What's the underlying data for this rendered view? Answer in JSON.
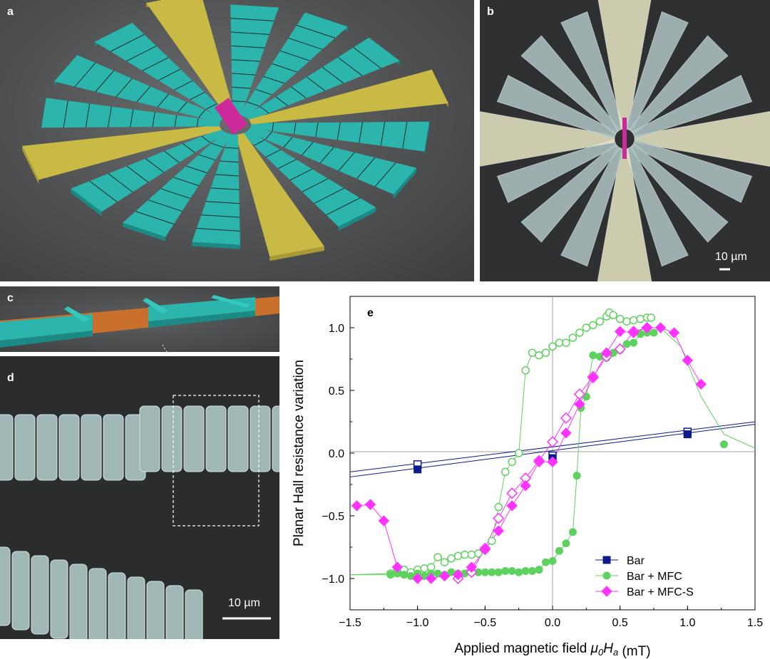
{
  "panels": {
    "a": {
      "label": "a"
    },
    "b": {
      "label": "b",
      "scalebar": "10 µm"
    },
    "c": {
      "label": "c"
    },
    "d": {
      "label": "d",
      "scalebar": "10 µm"
    },
    "e": {
      "label": "e"
    }
  },
  "colors": {
    "teal": "#2bb5ad",
    "yellow": "#c9b945",
    "magenta": "#cc2a9a",
    "orange": "#c8702c",
    "bar": "#0b1b8a",
    "mfc": "#5fd15f",
    "mfcs": "#ff33ff"
  },
  "chart_data": {
    "type": "scatter",
    "xlabel_prefix": "Applied magnetic field ",
    "xlabel_var": "μ0Ha",
    "xlabel_unit": " (mT)",
    "ylabel": "Planar Hall resistance variation",
    "xlim": [
      -1.5,
      1.5
    ],
    "ylim": [
      -1.25,
      1.25
    ],
    "xticks": [
      "−1.5",
      "−1.0",
      "−0.5",
      "0.0",
      "0.5",
      "1.0",
      "1.5"
    ],
    "yticks": [
      "−1.0",
      "−0.5",
      "0.0",
      "0.5",
      "1.0"
    ],
    "legend_position": "bottom-right",
    "series": [
      {
        "name": "Bar",
        "color": "#0b1b8a",
        "marker": "square",
        "filled": [
          [
            -1.0,
            -0.13
          ],
          [
            0.0,
            -0.04
          ],
          [
            1.0,
            0.15
          ]
        ],
        "open": [
          [
            -1.0,
            -0.09
          ],
          [
            0.0,
            -0.02
          ],
          [
            1.0,
            0.17
          ]
        ]
      },
      {
        "name": "Bar + MFC",
        "color": "#5fd15f",
        "marker": "circle",
        "filled": [
          [
            -1.2,
            -0.97
          ],
          [
            -1.15,
            -0.96
          ],
          [
            -1.1,
            -0.97
          ],
          [
            -1.05,
            -0.98
          ],
          [
            -1.0,
            -0.96
          ],
          [
            -0.95,
            -0.98
          ],
          [
            -0.9,
            -0.96
          ],
          [
            -0.85,
            -0.96
          ],
          [
            -0.8,
            -0.97
          ],
          [
            -0.75,
            -0.95
          ],
          [
            -0.7,
            -0.96
          ],
          [
            -0.65,
            -0.96
          ],
          [
            -0.6,
            -0.94
          ],
          [
            -0.55,
            -0.95
          ],
          [
            -0.5,
            -0.95
          ],
          [
            -0.45,
            -0.95
          ],
          [
            -0.4,
            -0.95
          ],
          [
            -0.35,
            -0.94
          ],
          [
            -0.3,
            -0.94
          ],
          [
            -0.25,
            -0.95
          ],
          [
            -0.2,
            -0.94
          ],
          [
            -0.15,
            -0.94
          ],
          [
            -0.1,
            -0.93
          ],
          [
            -0.05,
            -0.87
          ],
          [
            0.0,
            -0.86
          ],
          [
            0.05,
            -0.78
          ],
          [
            0.1,
            -0.72
          ],
          [
            0.15,
            -0.63
          ],
          [
            0.18,
            -0.18
          ],
          [
            0.21,
            0.36
          ],
          [
            0.25,
            0.45
          ],
          [
            0.3,
            0.78
          ],
          [
            0.35,
            0.77
          ],
          [
            0.4,
            0.76
          ],
          [
            0.45,
            0.8
          ],
          [
            0.5,
            0.82
          ],
          [
            0.55,
            0.87
          ],
          [
            0.6,
            0.88
          ],
          [
            0.65,
            0.95
          ],
          [
            0.7,
            0.96
          ],
          [
            0.75,
            0.96
          ],
          [
            1.27,
            0.07
          ]
        ],
        "open": [
          [
            -1.2,
            -0.96
          ],
          [
            -1.15,
            -0.93
          ],
          [
            -1.1,
            -0.93
          ],
          [
            -1.05,
            -0.95
          ],
          [
            -1.0,
            -0.93
          ],
          [
            -0.95,
            -0.92
          ],
          [
            -0.9,
            -0.91
          ],
          [
            -0.85,
            -0.83
          ],
          [
            -0.8,
            -0.87
          ],
          [
            -0.75,
            -0.84
          ],
          [
            -0.7,
            -0.82
          ],
          [
            -0.65,
            -0.81
          ],
          [
            -0.6,
            -0.81
          ],
          [
            -0.55,
            -0.8
          ],
          [
            -0.5,
            -0.77
          ],
          [
            -0.45,
            -0.7
          ],
          [
            -0.4,
            -0.43
          ],
          [
            -0.35,
            -0.15
          ],
          [
            -0.3,
            -0.07
          ],
          [
            -0.25,
            0.0
          ],
          [
            -0.2,
            0.66
          ],
          [
            -0.15,
            0.8
          ],
          [
            -0.1,
            0.78
          ],
          [
            -0.05,
            0.8
          ],
          [
            0.0,
            0.85
          ],
          [
            0.05,
            0.88
          ],
          [
            0.1,
            0.88
          ],
          [
            0.15,
            0.92
          ],
          [
            0.2,
            0.96
          ],
          [
            0.25,
            1.0
          ],
          [
            0.3,
            1.02
          ],
          [
            0.35,
            1.05
          ],
          [
            0.4,
            1.09
          ],
          [
            0.42,
            1.12
          ],
          [
            0.45,
            1.1
          ],
          [
            0.5,
            1.07
          ],
          [
            0.55,
            1.05
          ],
          [
            0.6,
            1.06
          ],
          [
            0.65,
            1.07
          ],
          [
            0.7,
            1.08
          ],
          [
            0.73,
            1.08
          ]
        ]
      },
      {
        "name": "Bar + MFC-S",
        "color": "#ff33ff",
        "marker": "diamond",
        "filled": [
          [
            -1.45,
            -0.42
          ],
          [
            -1.35,
            -0.41
          ],
          [
            -1.25,
            -0.54
          ],
          [
            -1.15,
            -0.91
          ],
          [
            -1.0,
            -1.0
          ],
          [
            -0.9,
            -1.0
          ],
          [
            -0.8,
            -0.98
          ],
          [
            -0.7,
            -0.97
          ],
          [
            -0.6,
            -0.91
          ],
          [
            -0.5,
            -0.77
          ],
          [
            -0.4,
            -0.62
          ],
          [
            -0.3,
            -0.42
          ],
          [
            -0.2,
            -0.26
          ],
          [
            -0.1,
            -0.07
          ],
          [
            0.0,
            -0.07
          ],
          [
            0.1,
            0.16
          ],
          [
            0.2,
            0.39
          ],
          [
            0.3,
            0.6
          ],
          [
            0.4,
            0.8
          ],
          [
            0.5,
            0.97
          ],
          [
            0.6,
            0.96
          ],
          [
            0.7,
            1.0
          ],
          [
            0.8,
            1.0
          ],
          [
            0.9,
            0.96
          ],
          [
            1.0,
            0.74
          ],
          [
            1.1,
            0.55
          ]
        ],
        "open": [
          [
            -0.7,
            -1.0
          ],
          [
            -0.6,
            -0.95
          ],
          [
            -0.5,
            -0.76
          ],
          [
            -0.4,
            -0.52
          ],
          [
            -0.3,
            -0.32
          ],
          [
            -0.2,
            -0.2
          ],
          [
            -0.1,
            -0.06
          ],
          [
            0.0,
            0.09
          ],
          [
            0.1,
            0.28
          ],
          [
            0.2,
            0.47
          ],
          [
            0.3,
            0.61
          ],
          [
            0.4,
            0.77
          ],
          [
            0.5,
            0.83
          ],
          [
            0.6,
            0.97
          ],
          [
            0.7,
            1.0
          ]
        ]
      }
    ]
  }
}
